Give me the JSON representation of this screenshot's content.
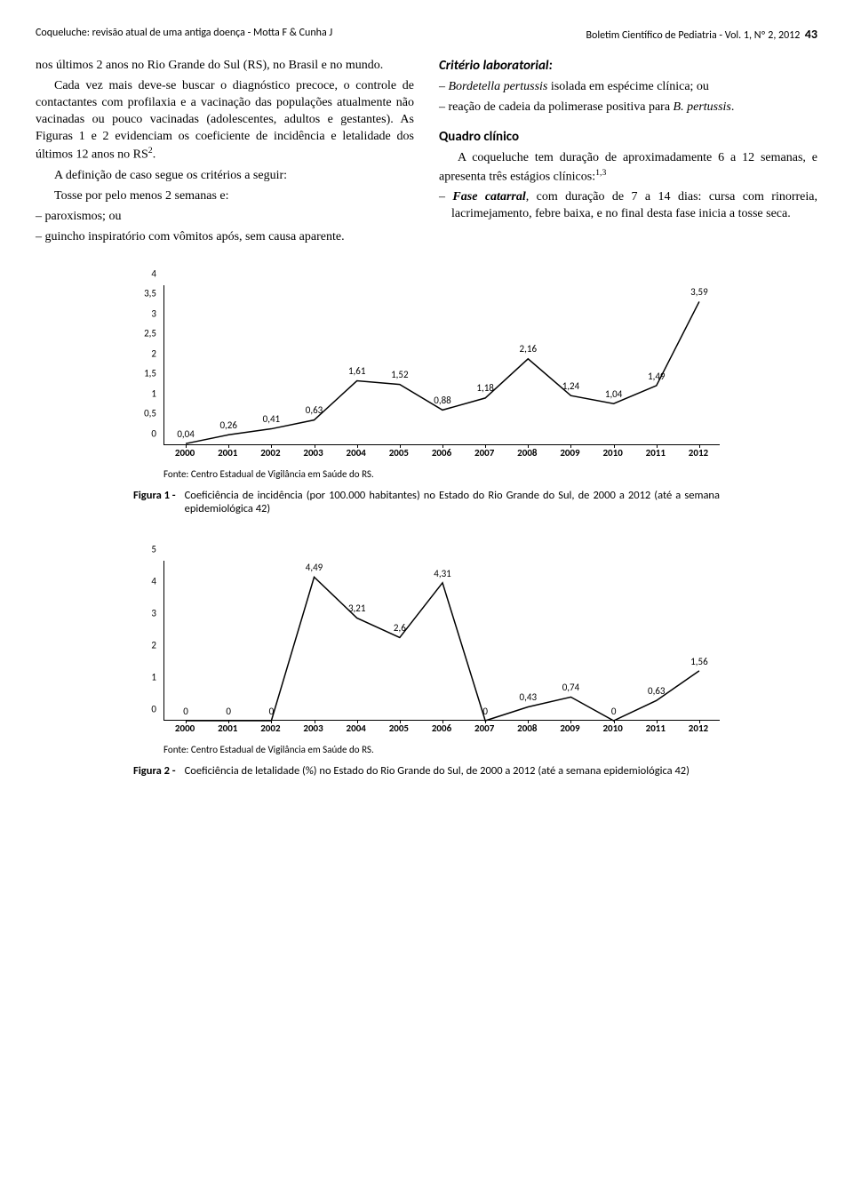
{
  "header": {
    "left": "Coqueluche: revisão atual de uma antiga doença - Motta F & Cunha J",
    "right_journal": "Boletim Científico de Pediatria - Vol. 1, Nº 2, 2012",
    "page": "43"
  },
  "left_col": {
    "p1": "nos últimos 2 anos no Rio Grande do Sul (RS), no Brasil e no mundo.",
    "p2_a": "Cada vez mais deve-se buscar o diagnóstico precoce, o controle de contactantes com profilaxia e a vacinação das populações atualmente não vacinadas ou pouco vacinadas (adolescentes, adultos e gestantes). As Figuras 1 e 2 evidenciam os coeficiente de incidência e letalidade dos últimos 12 anos no RS",
    "p2_sup": "2",
    "p2_b": ".",
    "p3": "A definição de caso segue os critérios a seguir:",
    "p4": "Tosse por pelo menos 2 semanas e:",
    "bullets": [
      "paroxismos; ou",
      "guincho inspiratório com vômitos após, sem causa aparente."
    ]
  },
  "right_col": {
    "h1": "Critério laboratorial:",
    "b1_it": "Bordetella pertussis",
    "b1_rest": " isolada em espécime clínica; ou",
    "b2_a": "reação de cadeia da polimerase positiva para ",
    "b2_it": "B. pertussis",
    "b2_b": ".",
    "h2": "Quadro clínico",
    "p1_a": "A coqueluche tem duração de aproximadamente 6 a 12 semanas, e apresenta três estágios clínicos:",
    "p1_sup": "1,3",
    "b3_bold": "Fase catarral",
    "b3_rest": ", com duração de 7 a 14 dias: cursa com rinorreia, lacrimejamento, febre baixa, e no final desta fase inicia a tosse seca."
  },
  "chart1": {
    "type": "line",
    "ylim": [
      0,
      4
    ],
    "ytick_step": 0.5,
    "yticks": [
      "0",
      "0,5",
      "1",
      "1,5",
      "2",
      "2,5",
      "3",
      "3,5",
      "4"
    ],
    "xlabels": [
      "2000",
      "2001",
      "2002",
      "2003",
      "2004",
      "2005",
      "2006",
      "2007",
      "2008",
      "2009",
      "2010",
      "2011",
      "2012"
    ],
    "values": [
      0.04,
      0.26,
      0.41,
      0.63,
      1.61,
      1.52,
      0.88,
      1.18,
      2.16,
      1.24,
      1.04,
      1.49,
      3.59
    ],
    "value_labels": [
      "0,04",
      "0,26",
      "0,41",
      "0,63",
      "1,61",
      "1,52",
      "0,88",
      "1,18",
      "2,16",
      "1,24",
      "1,04",
      "1,49",
      "3,59"
    ],
    "line_color": "#000000",
    "line_width": 1.5,
    "background_color": "#ffffff",
    "label_fontsize": 11,
    "source": "Fonte: Centro Estadual de Vigilância em Saúde do RS.",
    "caption_label": "Figura 1 -",
    "caption_text": "Coeficiência de incidência (por 100.000 habitantes) no Estado do Rio Grande do Sul, de 2000 a 2012 (até a semana epidemiológica 42)"
  },
  "chart2": {
    "type": "line",
    "ylim": [
      0,
      5
    ],
    "ytick_step": 1,
    "yticks": [
      "0",
      "1",
      "2",
      "3",
      "4",
      "5"
    ],
    "xlabels": [
      "2000",
      "2001",
      "2002",
      "2003",
      "2004",
      "2005",
      "2006",
      "2007",
      "2008",
      "2009",
      "2010",
      "2011",
      "2012"
    ],
    "values": [
      0,
      0,
      0,
      4.49,
      3.21,
      2.6,
      4.31,
      0,
      0.43,
      0.74,
      0,
      0.63,
      1.56
    ],
    "value_labels": [
      "0",
      "0",
      "0",
      "4,49",
      "3,21",
      "2,6",
      "4,31",
      "0",
      "0,43",
      "0,74",
      "0",
      "0,63",
      "1,56"
    ],
    "line_color": "#000000",
    "line_width": 1.5,
    "background_color": "#ffffff",
    "label_fontsize": 11,
    "source": "Fonte: Centro Estadual de Vigilância em Saúde do RS.",
    "caption_label": "Figura 2 -",
    "caption_text": "Coeficiência de letalidade (%) no Estado do Rio Grande do Sul, de 2000 a 2012 (até a semana epidemiológica 42)"
  }
}
